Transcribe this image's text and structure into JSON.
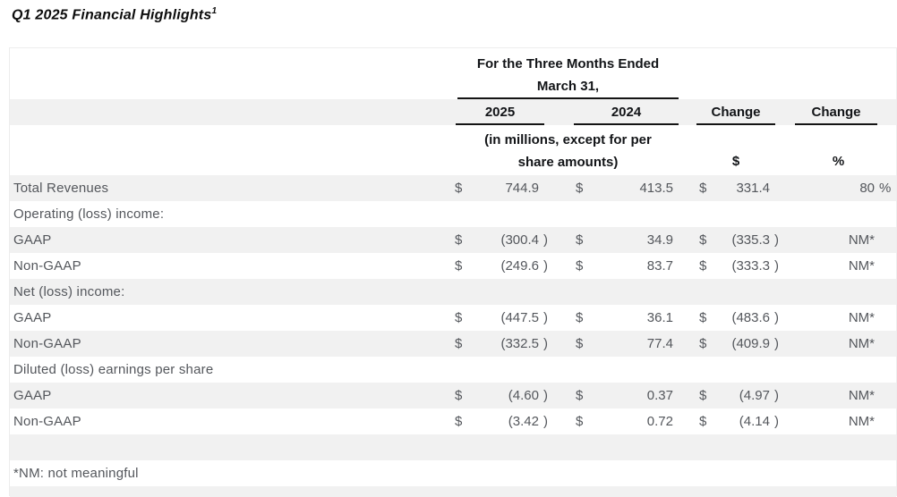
{
  "title": {
    "text": "Q1 2025 Financial Highlights",
    "superscript": "1"
  },
  "table": {
    "period_header": {
      "line1": "For the Three Months Ended",
      "line2": "March 31,"
    },
    "columns": {
      "y2025": "2025",
      "y2024": "2024",
      "change_dollar": "Change",
      "change_pct": "Change"
    },
    "units": {
      "note_line1": "(in millions, except for per",
      "note_line2": "share amounts)",
      "change_dollar_symbol": "$",
      "change_pct_symbol": "%"
    },
    "currency_symbol": "$",
    "rows": [
      {
        "type": "data",
        "label": "Total Revenues",
        "cells": {
          "y2025": "744.9",
          "y2024": "413.5",
          "chg": "331.4",
          "pct": "80 %"
        }
      },
      {
        "type": "section",
        "label": "Operating (loss) income:"
      },
      {
        "type": "data",
        "label": "GAAP",
        "cells": {
          "y2025": "(300.4 )",
          "y2024": "34.9",
          "chg": "(335.3 )",
          "pct": "NM*"
        }
      },
      {
        "type": "data",
        "label": "Non-GAAP",
        "cells": {
          "y2025": "(249.6 )",
          "y2024": "83.7",
          "chg": "(333.3 )",
          "pct": "NM*"
        }
      },
      {
        "type": "section",
        "label": "Net (loss) income:"
      },
      {
        "type": "data",
        "label": "GAAP",
        "cells": {
          "y2025": "(447.5 )",
          "y2024": "36.1",
          "chg": "(483.6 )",
          "pct": "NM*"
        }
      },
      {
        "type": "data",
        "label": "Non-GAAP",
        "cells": {
          "y2025": "(332.5 )",
          "y2024": "77.4",
          "chg": "(409.9 )",
          "pct": "NM*"
        }
      },
      {
        "type": "section",
        "label": "Diluted (loss) earnings per share"
      },
      {
        "type": "data",
        "label": "GAAP",
        "cells": {
          "y2025": "(4.60 )",
          "y2024": "0.37",
          "chg": "(4.97 )",
          "pct": "NM*"
        }
      },
      {
        "type": "data",
        "label": "Non-GAAP",
        "cells": {
          "y2025": "(3.42 )",
          "y2024": "0.72",
          "chg": "(4.14 )",
          "pct": "NM*"
        }
      },
      {
        "type": "spacer",
        "label": ""
      },
      {
        "type": "footnote",
        "label": "*NM: not meaningful"
      },
      {
        "type": "spacer-bottom",
        "label": ""
      }
    ],
    "colors": {
      "band_gray": "#f1f1f1",
      "header_text": "#121417",
      "body_text": "#54575c",
      "rule": "#141414"
    }
  }
}
